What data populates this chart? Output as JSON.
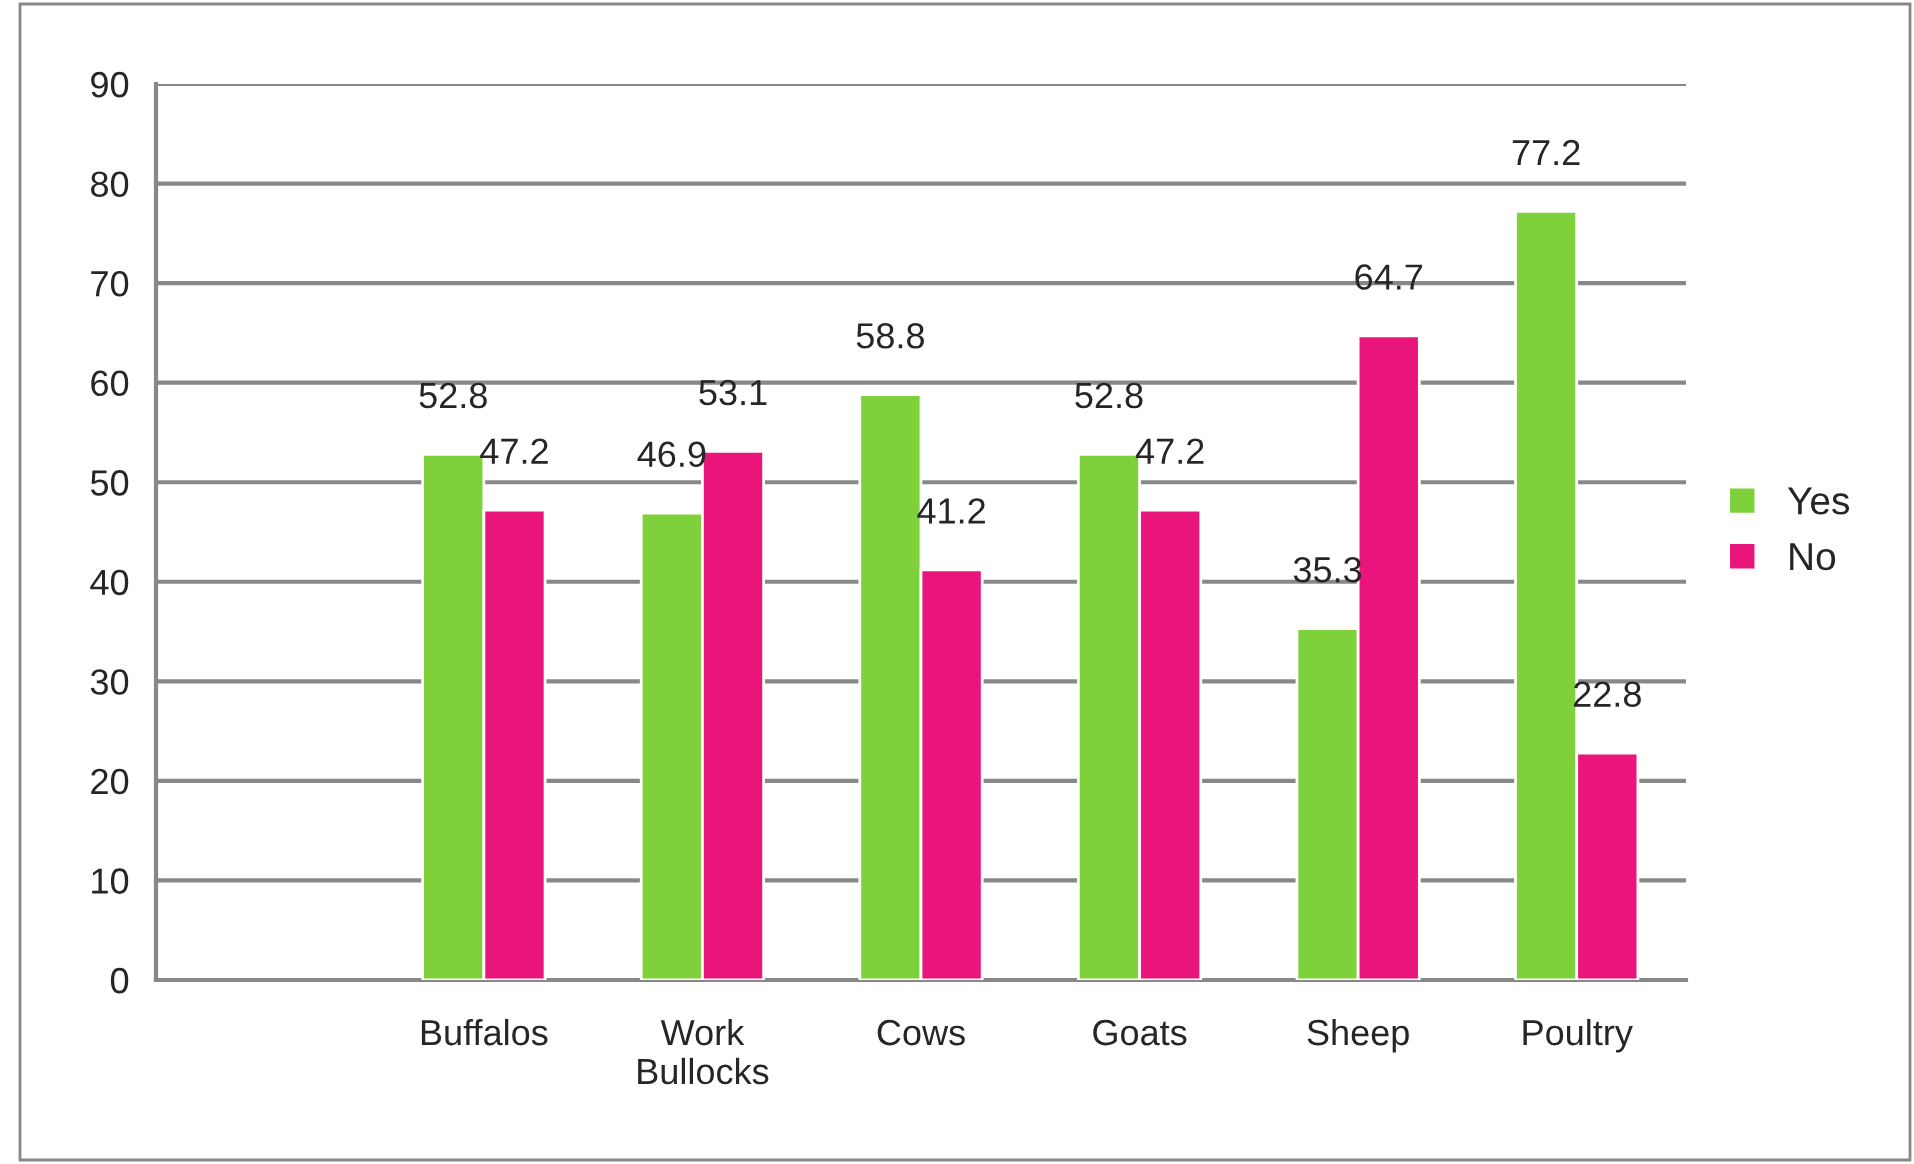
{
  "chart_data": {
    "type": "bar",
    "categories": [
      null,
      "Buffalos",
      "Work\nBullocks",
      "Cows",
      "Goats",
      "Sheep",
      "Poultry"
    ],
    "series": [
      {
        "name": "Yes",
        "color": "#7fd13b",
        "values": [
          null,
          52.8,
          46.9,
          58.8,
          52.8,
          35.3,
          77.2
        ]
      },
      {
        "name": "No",
        "color": "#ea157a",
        "values": [
          null,
          47.2,
          53.1,
          41.2,
          47.2,
          64.7,
          22.8
        ]
      }
    ],
    "ylim": [
      0,
      90
    ],
    "yticks": [
      0,
      10,
      20,
      30,
      40,
      50,
      60,
      70,
      80,
      90
    ],
    "grid": "y",
    "legend": "right",
    "data_labels": true
  }
}
